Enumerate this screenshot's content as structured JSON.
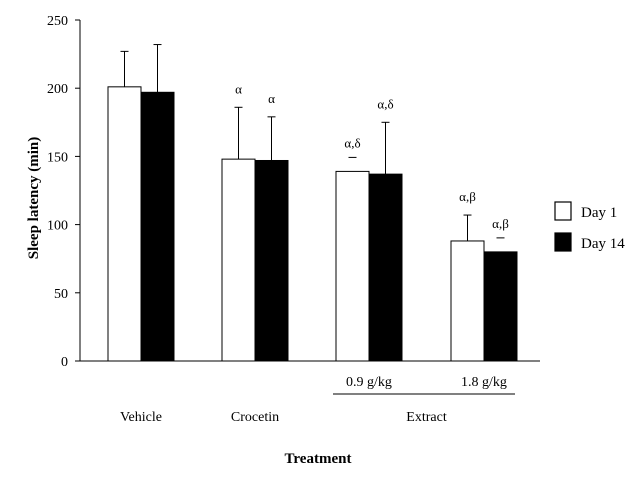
{
  "chart_data": {
    "type": "bar",
    "title": "",
    "xlabel": "Treatment",
    "ylabel": "Sleep latency (min)",
    "ylim": [
      0,
      250
    ],
    "yticks": [
      0,
      50,
      100,
      150,
      200,
      250
    ],
    "grid": false,
    "legend_position": "right",
    "categories": [
      "Vehicle",
      "Crocetin",
      "0.9 g/kg",
      "1.8 g/kg"
    ],
    "group_label": {
      "text": "Extract",
      "spans": [
        "0.9 g/kg",
        "1.8 g/kg"
      ]
    },
    "series": [
      {
        "name": "Day 1",
        "color": "#ffffff",
        "values": [
          201,
          148,
          139,
          88
        ],
        "errors": [
          26,
          38,
          null,
          19
        ],
        "annotations": [
          "",
          "α",
          "α,δ",
          "α,β"
        ],
        "annotation_bars": [
          false,
          false,
          true,
          false
        ]
      },
      {
        "name": "Day 14",
        "color": "#000000",
        "values": [
          197,
          147,
          137,
          80
        ],
        "errors": [
          35,
          32,
          38,
          null
        ],
        "annotations": [
          "",
          "α",
          "α,δ",
          "α,β"
        ],
        "annotation_bars": [
          false,
          false,
          false,
          true
        ]
      }
    ]
  }
}
